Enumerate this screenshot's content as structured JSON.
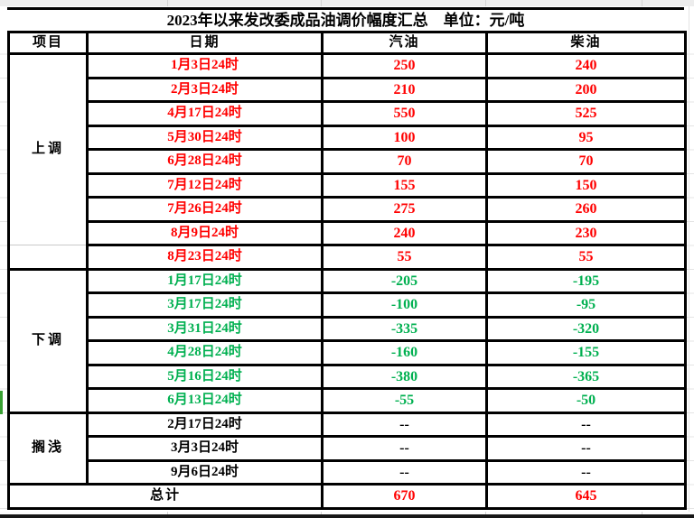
{
  "title": "2023年以来发改委成品油调价幅度汇总　单位：元/吨",
  "header": {
    "item": "项目",
    "date": "日期",
    "gasoline": "汽油",
    "diesel": "柴油"
  },
  "colors": {
    "up_red": "#FF0000",
    "down_green": "#00B050",
    "neutral_black": "#000000",
    "border_black": "#000000",
    "left_marker_green": "#38A032"
  },
  "sections": [
    {
      "label": "上调",
      "color_key": "up",
      "faint_bottom": true,
      "rows": [
        {
          "date": "1月3日24时",
          "gasoline": "250",
          "diesel": "240"
        },
        {
          "date": "2月3日24时",
          "gasoline": "210",
          "diesel": "200"
        },
        {
          "date": "4月17日24时",
          "gasoline": "550",
          "diesel": "525"
        },
        {
          "date": "5月30日24时",
          "gasoline": "100",
          "diesel": "95"
        },
        {
          "date": "6月28日24时",
          "gasoline": "70",
          "diesel": "70"
        },
        {
          "date": "7月12日24时",
          "gasoline": "155",
          "diesel": "150"
        },
        {
          "date": "7月26日24时",
          "gasoline": "275",
          "diesel": "260"
        },
        {
          "date": "8月9日24时",
          "gasoline": "240",
          "diesel": "230"
        }
      ]
    },
    {
      "label": "",
      "color_key": "up",
      "faint_top": true,
      "rows": [
        {
          "date": "8月23日24时",
          "gasoline": "55",
          "diesel": "55"
        }
      ]
    },
    {
      "label": "下调",
      "color_key": "down",
      "rows": [
        {
          "date": "1月17日24时",
          "gasoline": "-205",
          "diesel": "-195"
        },
        {
          "date": "3月17日24时",
          "gasoline": "-100",
          "diesel": "-95"
        },
        {
          "date": "3月31日24时",
          "gasoline": "-335",
          "diesel": "-320"
        },
        {
          "date": "4月28日24时",
          "gasoline": "-160",
          "diesel": "-155"
        },
        {
          "date": "5月16日24时",
          "gasoline": "-380",
          "diesel": "-365"
        },
        {
          "date": "6月13日24时",
          "gasoline": "-55",
          "diesel": "-50"
        }
      ]
    },
    {
      "label": "搁浅",
      "color_key": "neutral",
      "rows": [
        {
          "date": "2月17日24时",
          "gasoline": "--",
          "diesel": "--"
        },
        {
          "date": "3月3日24时",
          "gasoline": "--",
          "diesel": "--"
        },
        {
          "date": "9月6日24时",
          "gasoline": "--",
          "diesel": "--"
        }
      ]
    }
  ],
  "total": {
    "label": "总计",
    "gasoline": "670",
    "diesel": "645"
  }
}
